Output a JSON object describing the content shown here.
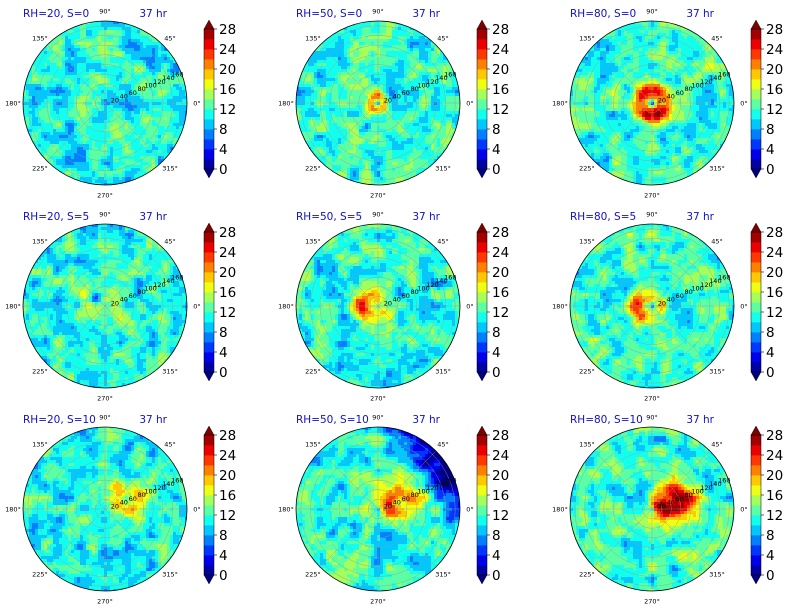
{
  "chart_data": {
    "type": "heatmap",
    "projection": "polar",
    "layout": {
      "rows": 3,
      "cols": 3
    },
    "colormap": "jet",
    "color_levels": [
      0,
      2,
      4,
      6,
      8,
      10,
      12,
      14,
      16,
      18,
      20,
      22,
      24,
      26,
      28
    ],
    "colorbar": {
      "ticks": [
        "0",
        "4",
        "8",
        "12",
        "16",
        "20",
        "24",
        "28"
      ],
      "extend": "both"
    },
    "theta_ticks": [
      "0°",
      "45°",
      "90°",
      "135°",
      "180°",
      "225°",
      "270°",
      "315°"
    ],
    "radial_ticks": [
      "20",
      "40",
      "60",
      "80",
      "100",
      "120",
      "140",
      "160"
    ],
    "radial_range": [
      0,
      170
    ],
    "grid": true,
    "panels": [
      {
        "title": "RH=20, S=0",
        "time": "37 hr",
        "rh": 20,
        "shear": 0
      },
      {
        "title": "RH=50, S=0",
        "time": "37 hr",
        "rh": 50,
        "shear": 0
      },
      {
        "title": "RH=80, S=0",
        "time": "37 hr",
        "rh": 80,
        "shear": 0
      },
      {
        "title": "RH=20, S=5",
        "time": "37 hr",
        "rh": 20,
        "shear": 5
      },
      {
        "title": "RH=50, S=5",
        "time": "37 hr",
        "rh": 50,
        "shear": 5
      },
      {
        "title": "RH=80, S=5",
        "time": "37 hr",
        "rh": 80,
        "shear": 5
      },
      {
        "title": "RH=20, S=10",
        "time": "37 hr",
        "rh": 20,
        "shear": 10
      },
      {
        "title": "RH=50, S=10",
        "time": "37 hr",
        "rh": 50,
        "shear": 10
      },
      {
        "title": "RH=80, S=10",
        "time": "37 hr",
        "rh": 80,
        "shear": 10
      }
    ]
  }
}
